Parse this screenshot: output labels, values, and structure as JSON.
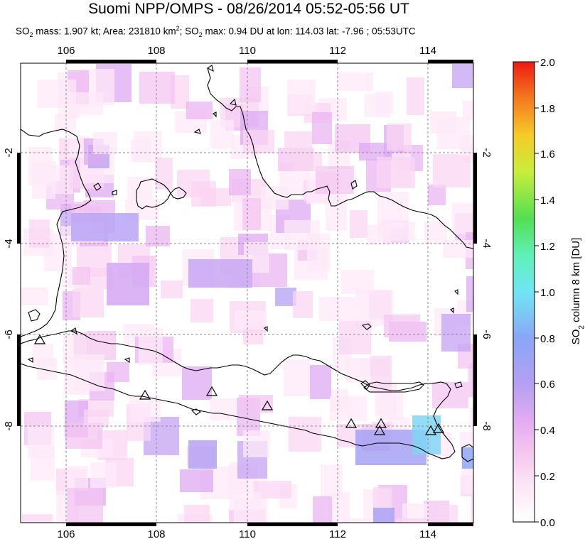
{
  "header": {
    "title": "Suomi NPP/OMPS - 08/26/2014 05:52-05:56 UT",
    "subtitle_parts": {
      "mass_prefix": "SO",
      "mass_sub": "2",
      "mass_text": " mass: 1.907 kt; Area: 231810 km",
      "area_sup": "2",
      "max_prefix": "; SO",
      "max_sub": "2",
      "max_text": " max: 0.94 DU at lon: 114.03 lat: -7.96 ; 05:53UTC"
    }
  },
  "map": {
    "lon_ticks": [
      "106",
      "108",
      "110",
      "112",
      "114"
    ],
    "lat_ticks": [
      "-2",
      "-4",
      "-6",
      "-8"
    ],
    "volcano_count_note": "triangle markers",
    "colors": {
      "coast": "#000000",
      "grid": "#888888",
      "frame": "#000000"
    }
  },
  "colorbar": {
    "label_prefix": "SO",
    "label_sub": "2",
    "label_suffix": " column 8 km [DU]",
    "ticks": [
      "0.0",
      "0.2",
      "0.4",
      "0.6",
      "0.8",
      "1.0",
      "1.2",
      "1.4",
      "1.6",
      "1.8",
      "2.0"
    ],
    "stops": [
      "#ffffff",
      "#fbdcf3",
      "#eeb4f0",
      "#c9a2f2",
      "#8e9cf5",
      "#6fd9f6",
      "#63f5c8",
      "#5ee85a",
      "#c9ef3c",
      "#f8c428",
      "#f46a1e",
      "#ef1a14"
    ]
  }
}
